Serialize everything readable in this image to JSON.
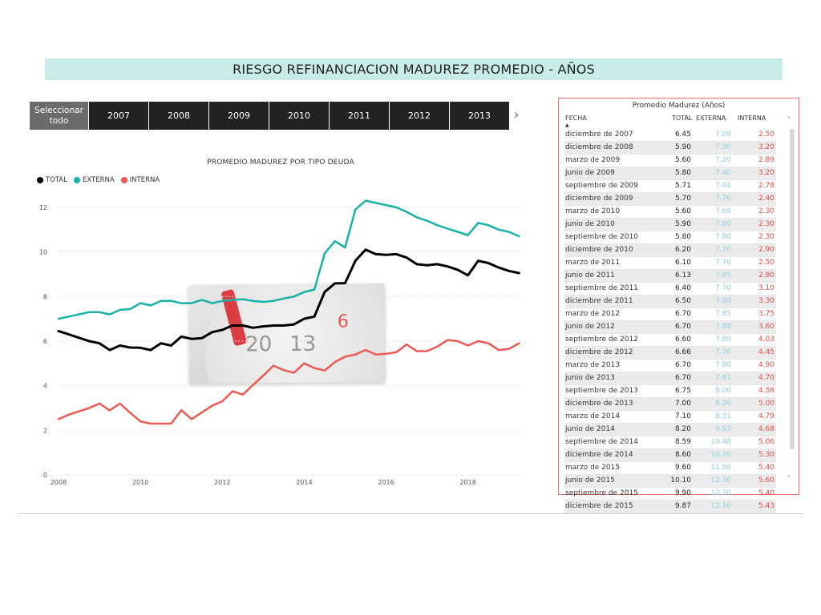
{
  "header": {
    "title": "RIESGO REFINANCIACION MADUREZ PROMEDIO - AÑOS"
  },
  "slicer": {
    "select_all": "Seleccionar todo",
    "years": [
      "2007",
      "2008",
      "2009",
      "2010",
      "2011",
      "2012",
      "2013"
    ],
    "next_icon": "chevron-right-icon"
  },
  "colors": {
    "total": "#000000",
    "externa": "#18b2a7",
    "interna": "#ec5a52"
  },
  "legend": [
    "TOTAL",
    "EXTERNA",
    "INTERNA"
  ],
  "table": {
    "title": "Promedio Madurez (Años)",
    "columns": [
      "FECHA",
      "TOTAL",
      "EXTERNA",
      "INTERNA"
    ],
    "rows": [
      [
        "diciembre de 2007",
        "6.45",
        "7.00",
        "2.50"
      ],
      [
        "diciembre de 2008",
        "5.90",
        "7.30",
        "3.20"
      ],
      [
        "marzo de 2009",
        "5.60",
        "7.20",
        "2.89"
      ],
      [
        "junio de 2009",
        "5.80",
        "7.40",
        "3.20"
      ],
      [
        "septiembre de 2009",
        "5.71",
        "7.44",
        "2.78"
      ],
      [
        "diciembre de 2009",
        "5.70",
        "7.70",
        "2.40"
      ],
      [
        "marzo de 2010",
        "5.60",
        "7.60",
        "2.30"
      ],
      [
        "junio de 2010",
        "5.90",
        "7.80",
        "2.30"
      ],
      [
        "septiembre de 2010",
        "5.80",
        "7.80",
        "2.30"
      ],
      [
        "diciembre de 2010",
        "6.20",
        "7.70",
        "2.90"
      ],
      [
        "marzo de 2011",
        "6.10",
        "7.70",
        "2.50"
      ],
      [
        "junio de 2011",
        "6.13",
        "7.85",
        "2.80"
      ],
      [
        "septiembre de 2011",
        "6.40",
        "7.70",
        "3.10"
      ],
      [
        "diciembre de 2011",
        "6.50",
        "7.80",
        "3.30"
      ],
      [
        "marzo de 2012",
        "6.70",
        "7.85",
        "3.75"
      ],
      [
        "junio de 2012",
        "6.70",
        "7.88",
        "3.60"
      ],
      [
        "septiembre de 2012",
        "6.60",
        "7.80",
        "4.03"
      ],
      [
        "diciembre de 2012",
        "6.66",
        "7.76",
        "4.45"
      ],
      [
        "marzo de 2013",
        "6.70",
        "7.80",
        "4.90"
      ],
      [
        "junio de 2013",
        "6.70",
        "7.91",
        "4.70"
      ],
      [
        "septiembre de 2013",
        "6.75",
        "8.00",
        "4.58"
      ],
      [
        "diciembre de 2013",
        "7.00",
        "8.20",
        "5.00"
      ],
      [
        "marzo de 2014",
        "7.10",
        "8.31",
        "4.79"
      ],
      [
        "junio de 2014",
        "8.20",
        "9.93",
        "4.68"
      ],
      [
        "septiembre de 2014",
        "8.59",
        "10.48",
        "5.06"
      ],
      [
        "diciembre de 2014",
        "8.60",
        "10.20",
        "5.30"
      ],
      [
        "marzo de 2015",
        "9.60",
        "11.90",
        "5.40"
      ],
      [
        "junio de 2015",
        "10.10",
        "12.30",
        "5.60"
      ],
      [
        "septiembre de 2015",
        "9.90",
        "12.20",
        "5.40"
      ],
      [
        "diciembre de 2015",
        "9.87",
        "12.10",
        "5.43"
      ]
    ]
  },
  "chart_data": {
    "type": "line",
    "title": "PROMEDIO MADUREZ POR TIPO DEUDA",
    "xlabel": "",
    "ylabel": "",
    "xlim": [
      2008,
      2019.3
    ],
    "ylim": [
      0,
      12.5
    ],
    "xticks": [
      2008,
      2010,
      2012,
      2014,
      2016,
      2018
    ],
    "yticks": [
      0,
      2,
      4,
      6,
      8,
      10,
      12
    ],
    "grid": true,
    "legend_position": "top-left",
    "x": [
      2008.0,
      2008.25,
      2008.5,
      2008.75,
      2009.0,
      2009.25,
      2009.5,
      2009.75,
      2010.0,
      2010.25,
      2010.5,
      2010.75,
      2011.0,
      2011.25,
      2011.5,
      2011.75,
      2012.0,
      2012.25,
      2012.5,
      2012.75,
      2013.0,
      2013.25,
      2013.5,
      2013.75,
      2014.0,
      2014.25,
      2014.5,
      2014.75,
      2015.0,
      2015.25,
      2015.5,
      2015.75,
      2016.0,
      2016.25,
      2016.5,
      2016.75,
      2017.0,
      2017.25,
      2017.5,
      2017.75,
      2018.0,
      2018.25,
      2018.5,
      2018.75,
      2019.0,
      2019.25
    ],
    "series": [
      {
        "name": "TOTAL",
        "values": [
          6.45,
          6.3,
          6.15,
          6.0,
          5.9,
          5.6,
          5.8,
          5.71,
          5.7,
          5.6,
          5.9,
          5.8,
          6.2,
          6.1,
          6.13,
          6.4,
          6.5,
          6.7,
          6.7,
          6.6,
          6.66,
          6.7,
          6.7,
          6.75,
          7.0,
          7.1,
          8.2,
          8.59,
          8.6,
          9.6,
          10.1,
          9.9,
          9.87,
          9.9,
          9.75,
          9.45,
          9.4,
          9.45,
          9.35,
          9.2,
          8.95,
          9.6,
          9.5,
          9.3,
          9.15,
          9.05
        ]
      },
      {
        "name": "EXTERNA",
        "values": [
          7.0,
          7.1,
          7.2,
          7.3,
          7.3,
          7.2,
          7.4,
          7.44,
          7.7,
          7.6,
          7.8,
          7.8,
          7.7,
          7.7,
          7.85,
          7.7,
          7.8,
          7.85,
          7.88,
          7.8,
          7.76,
          7.8,
          7.91,
          8.0,
          8.2,
          8.31,
          9.93,
          10.48,
          10.2,
          11.9,
          12.3,
          12.2,
          12.1,
          12.0,
          11.8,
          11.55,
          11.4,
          11.2,
          11.05,
          10.9,
          10.75,
          11.3,
          11.2,
          11.0,
          10.9,
          10.7
        ]
      },
      {
        "name": "INTERNA",
        "values": [
          2.5,
          2.7,
          2.85,
          3.0,
          3.2,
          2.89,
          3.2,
          2.78,
          2.4,
          2.3,
          2.3,
          2.3,
          2.9,
          2.5,
          2.8,
          3.1,
          3.3,
          3.75,
          3.6,
          4.03,
          4.45,
          4.9,
          4.7,
          4.58,
          5.0,
          4.79,
          4.68,
          5.06,
          5.3,
          5.4,
          5.6,
          5.4,
          5.43,
          5.5,
          5.85,
          5.55,
          5.55,
          5.75,
          6.05,
          6.0,
          5.8,
          6.0,
          5.9,
          5.6,
          5.65,
          5.9
        ]
      }
    ]
  }
}
